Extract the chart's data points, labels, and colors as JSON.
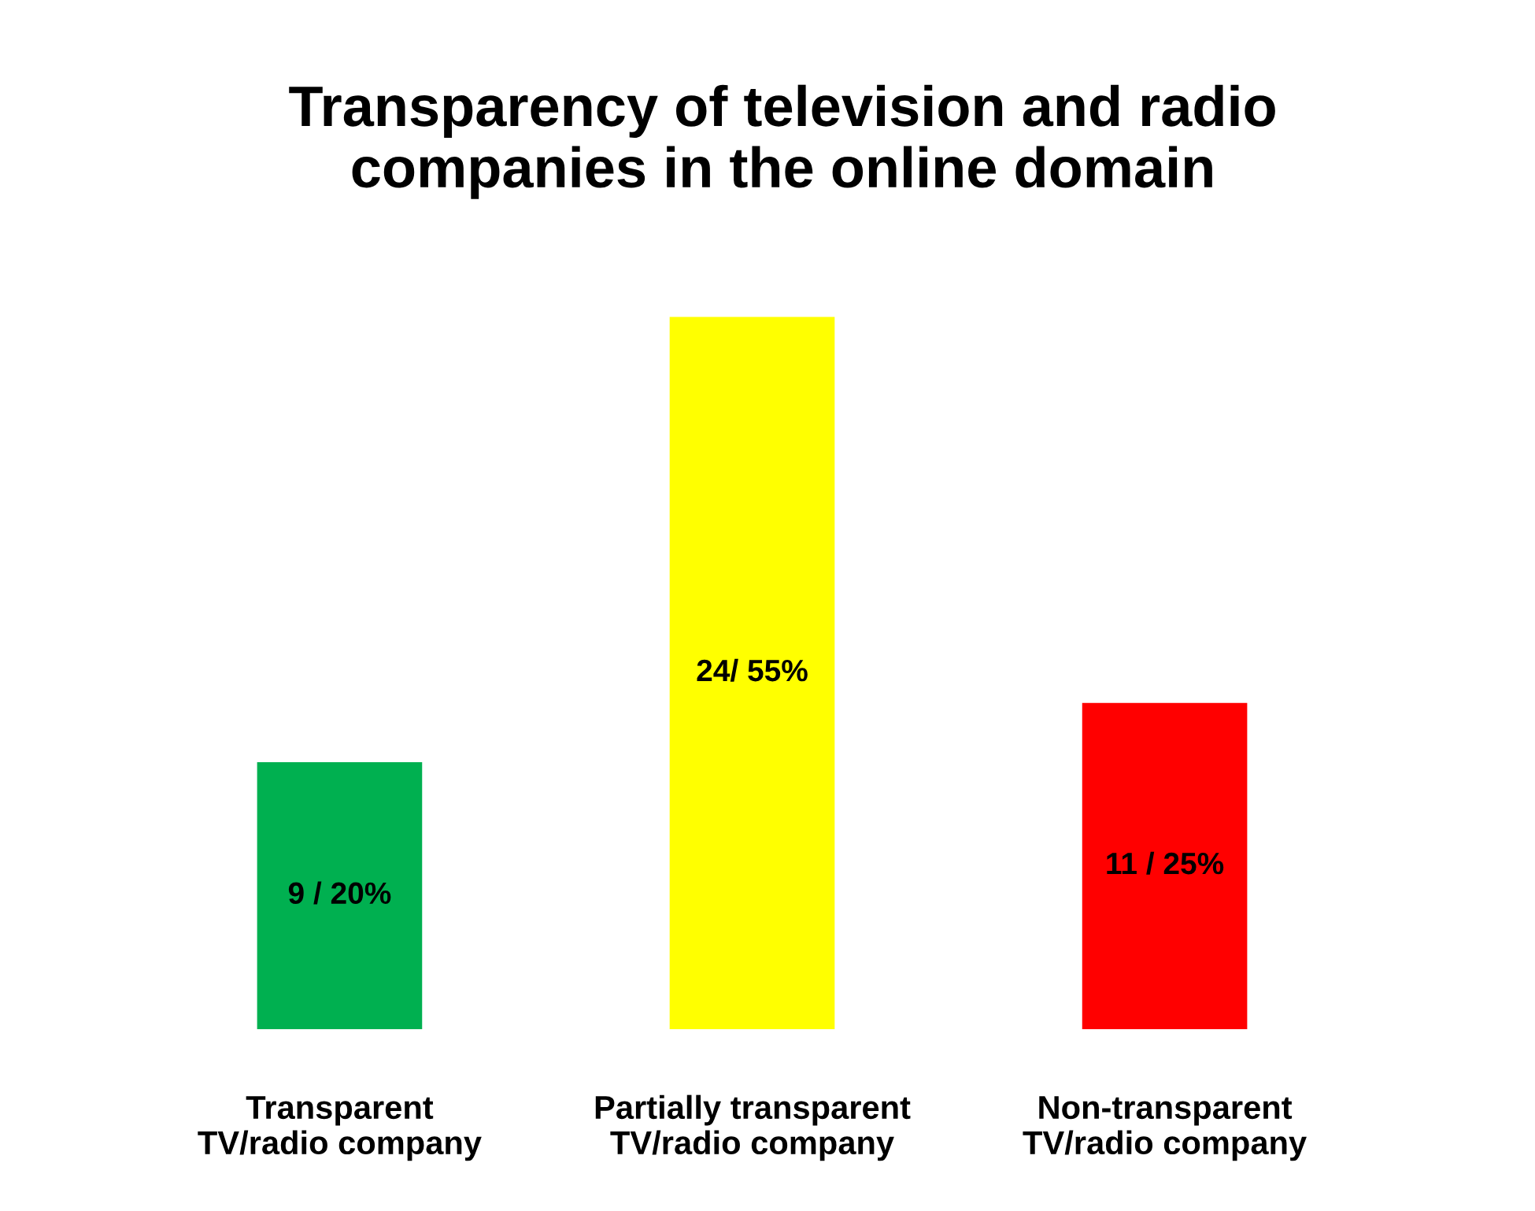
{
  "chart_data": {
    "type": "bar",
    "title": "Transparency of television and radio\ncompanies in the online domain",
    "categories": [
      "Transparent\nTV/radio company",
      "Partially transparent\nTV/radio company",
      "Non-transparent\nTV/radio company"
    ],
    "values": [
      9,
      24,
      11
    ],
    "colors": [
      "#00b050",
      "#ffff00",
      "#ff0000"
    ],
    "value_labels": [
      "9 / 20%",
      "24/ 55%",
      "11 / 25%"
    ],
    "grid": false,
    "legend": false
  }
}
